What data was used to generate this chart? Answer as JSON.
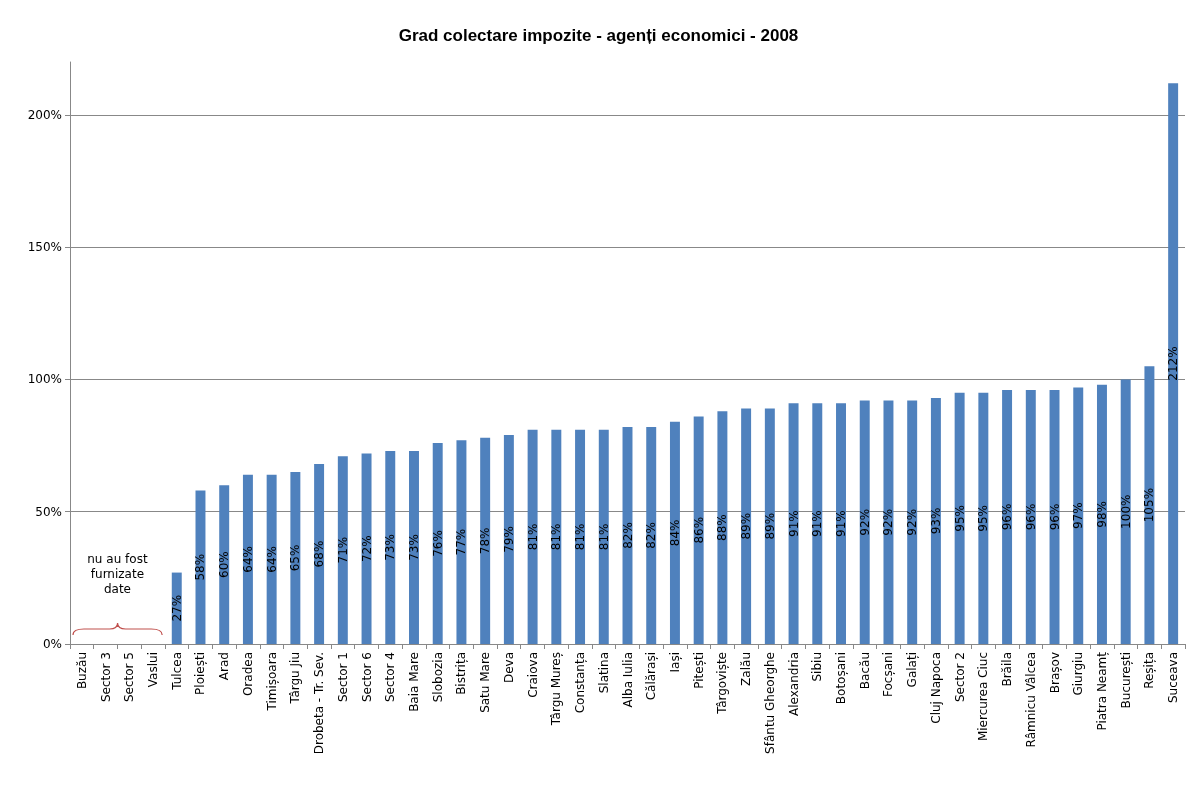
{
  "chart_data": {
    "type": "bar",
    "title": "Grad colectare impozite - agenți economici - 2008",
    "categories": [
      "Buzău",
      "Sector 3",
      "Sector 5",
      "Vaslui",
      "Tulcea",
      "Ploiești",
      "Arad",
      "Oradea",
      "Timișoara",
      "Târgu Jiu",
      "Drobeta - Tr. Sev.",
      "Sector 1",
      "Sector 6",
      "Sector 4",
      "Baia Mare",
      "Slobozia",
      "Bistrița",
      "Satu Mare",
      "Deva",
      "Craiova",
      "Târgu Mureș",
      "Constanța",
      "Slatina",
      "Alba Iulia",
      "Călărași",
      "Iași",
      "Pitești",
      "Târgoviște",
      "Zalău",
      "Sfântu Gheorghe",
      "Alexandria",
      "Sibiu",
      "Botoșani",
      "Bacău",
      "Focșani",
      "Galați",
      "Cluj Napoca",
      "Sector 2",
      "Miercurea Ciuc",
      "Brăila",
      "Râmnicu Vâlcea",
      "Brașov",
      "Giurgiu",
      "Piatra Neamț",
      "București",
      "Reșița",
      "Suceava"
    ],
    "values": [
      null,
      null,
      null,
      null,
      27,
      58,
      60,
      64,
      64,
      65,
      68,
      71,
      72,
      73,
      73,
      76,
      77,
      78,
      79,
      81,
      81,
      81,
      81,
      82,
      82,
      84,
      86,
      88,
      89,
      89,
      91,
      91,
      91,
      92,
      92,
      92,
      93,
      95,
      95,
      96,
      96,
      96,
      97,
      98,
      100,
      105,
      212
    ],
    "value_labels": [
      null,
      null,
      null,
      null,
      "27%",
      "58%",
      "60%",
      "64%",
      "64%",
      "65%",
      "68%",
      "71%",
      "72%",
      "73%",
      "73%",
      "76%",
      "77%",
      "78%",
      "79%",
      "81%",
      "81%",
      "81%",
      "81%",
      "82%",
      "82%",
      "84%",
      "86%",
      "88%",
      "89%",
      "89%",
      "91%",
      "91%",
      "91%",
      "92%",
      "92%",
      "92%",
      "93%",
      "95%",
      "95%",
      "96%",
      "96%",
      "96%",
      "97%",
      "98%",
      "100%",
      "105%",
      "212%"
    ],
    "color": "#4f81bd",
    "ylim": [
      0,
      220
    ],
    "yticks": [
      {
        "value": 0,
        "label": "0%"
      },
      {
        "value": 50,
        "label": "50%"
      },
      {
        "value": 100,
        "label": "100%"
      },
      {
        "value": 150,
        "label": "150%"
      },
      {
        "value": 200,
        "label": "200%"
      }
    ],
    "grid": "y",
    "annotations": [
      "nu au fost\nfurnizate\ndate"
    ]
  }
}
